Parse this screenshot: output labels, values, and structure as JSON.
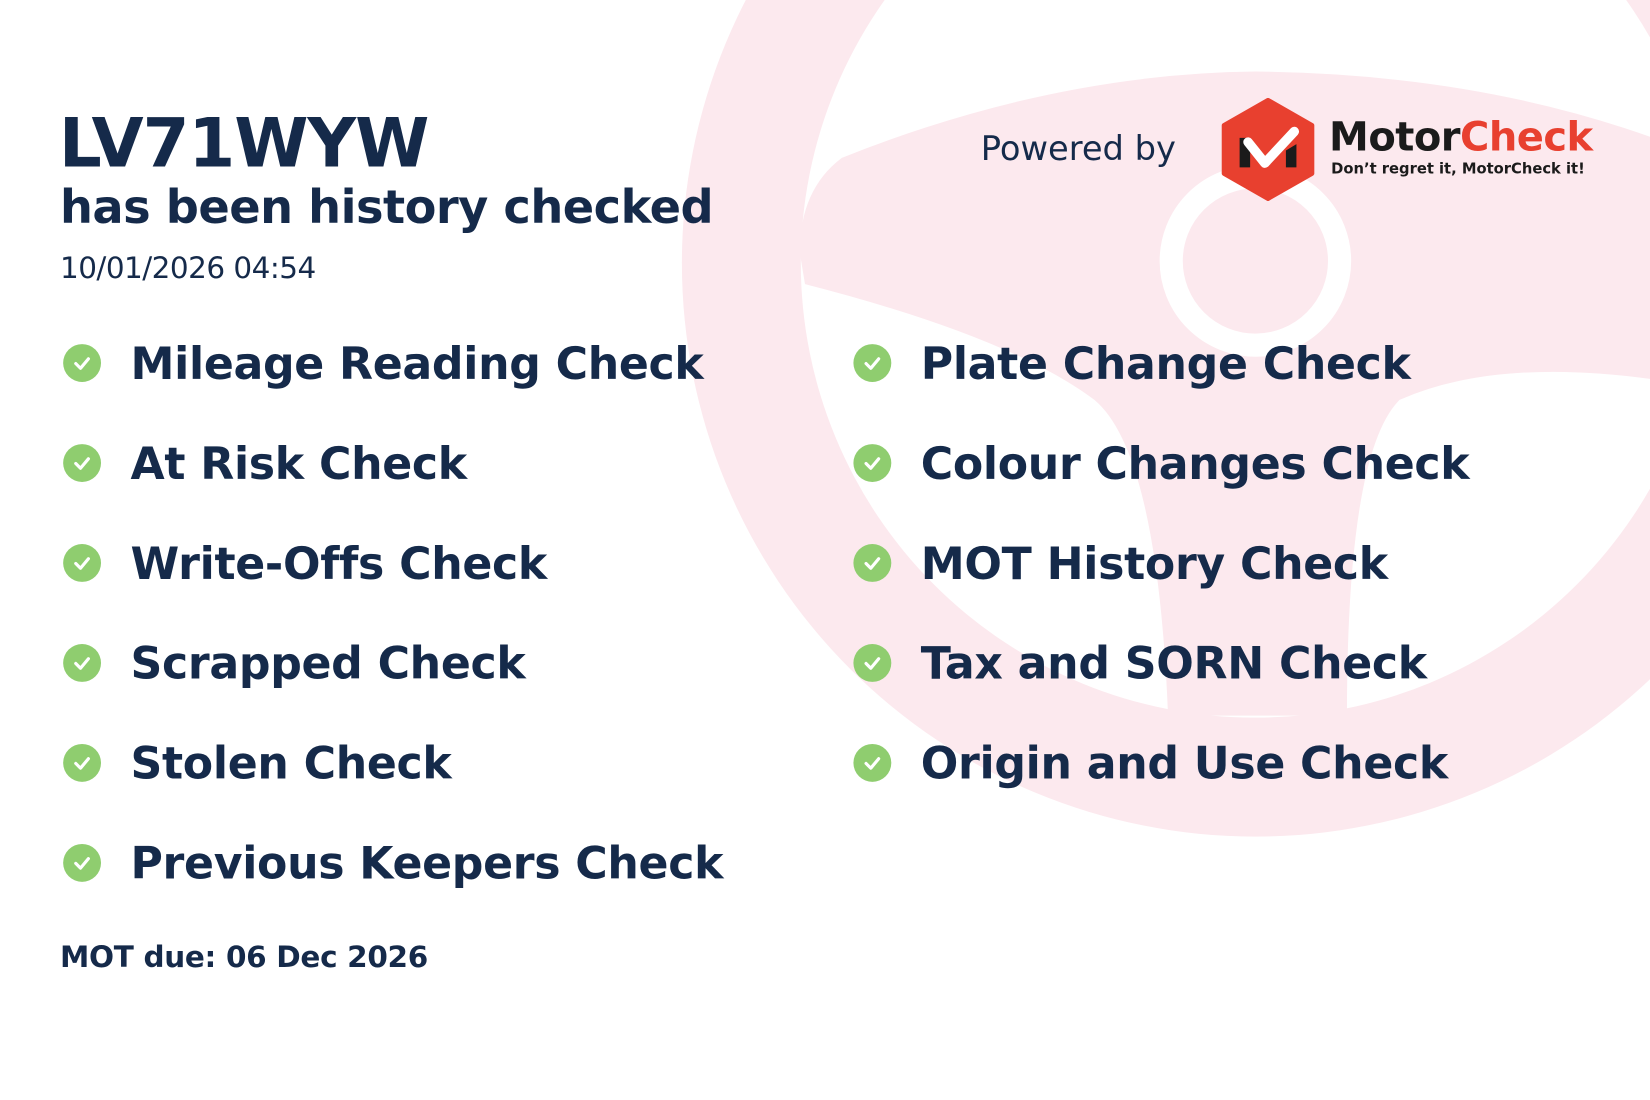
{
  "header": {
    "plate": "LV71WYW",
    "subtitle": "has been history checked",
    "timestamp": "10/01/2026 04:54"
  },
  "branding": {
    "powered_by": "Powered by",
    "brand_part1": "Motor",
    "brand_part2": "Check",
    "tagline": "Don’t regret it, MotorCheck it!",
    "colors": {
      "brand_red": "#e8402f",
      "text_navy": "#152a4a",
      "check_green": "#8fcd6f",
      "background_pink": "#fce9ee"
    }
  },
  "checks": {
    "left": [
      {
        "label": "Mileage Reading Check",
        "icon": "check-circle-icon"
      },
      {
        "label": "At Risk Check",
        "icon": "check-circle-icon"
      },
      {
        "label": "Write-Offs Check",
        "icon": "check-circle-icon"
      },
      {
        "label": "Scrapped Check",
        "icon": "check-circle-icon"
      },
      {
        "label": "Stolen Check",
        "icon": "check-circle-icon"
      },
      {
        "label": "Previous Keepers Check",
        "icon": "check-circle-icon"
      }
    ],
    "right": [
      {
        "label": "Plate Change Check",
        "icon": "check-circle-icon"
      },
      {
        "label": "Colour Changes Check",
        "icon": "check-circle-icon"
      },
      {
        "label": "MOT History Check",
        "icon": "check-circle-icon"
      },
      {
        "label": "Tax and SORN Check",
        "icon": "check-circle-icon"
      },
      {
        "label": "Origin and Use Check",
        "icon": "check-circle-icon"
      }
    ]
  },
  "footer": {
    "mot_due": "MOT due: 06 Dec 2026"
  }
}
